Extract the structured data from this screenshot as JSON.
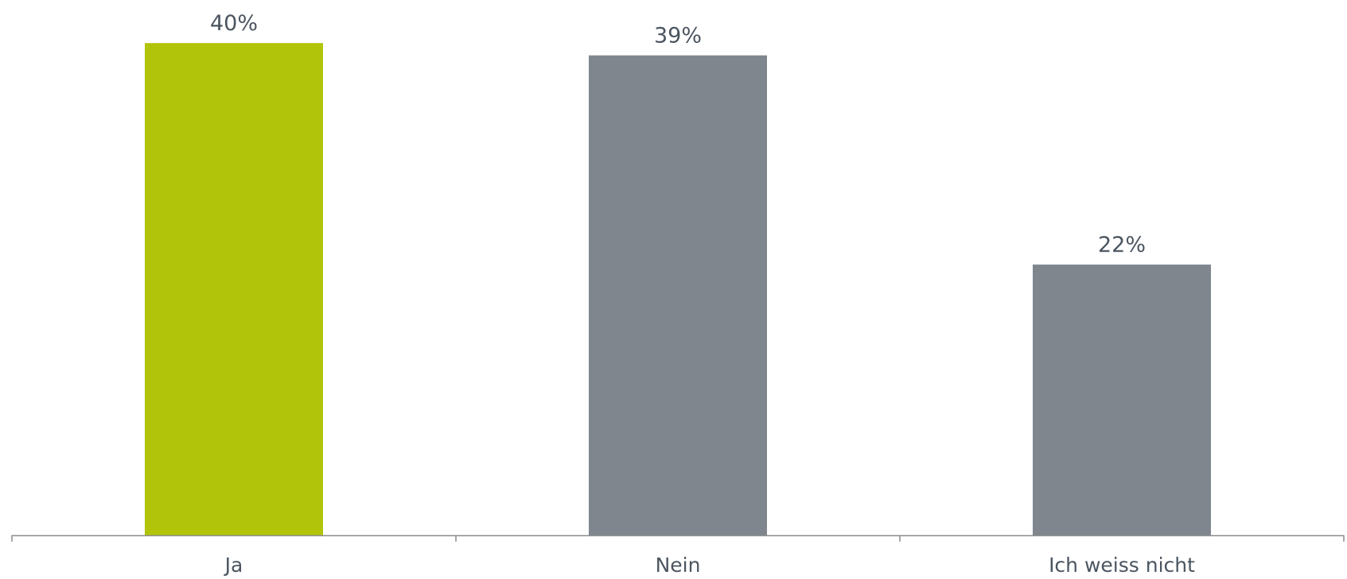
{
  "chart_data": {
    "type": "bar",
    "categories": [
      "Ja",
      "Nein",
      "Ich weiss nicht"
    ],
    "values": [
      40,
      39,
      22
    ],
    "data_labels": [
      "40%",
      "39%",
      "22%"
    ],
    "value_unit": "%",
    "title": "",
    "xlabel": "",
    "ylabel": "",
    "ylim": [
      0,
      43.5
    ],
    "grid": false,
    "legend": "none",
    "colors": [
      "#b2c40a",
      "#7f868e",
      "#7f868e"
    ],
    "axis_color": "#8c8c8c",
    "label_color": "#4b5560"
  }
}
